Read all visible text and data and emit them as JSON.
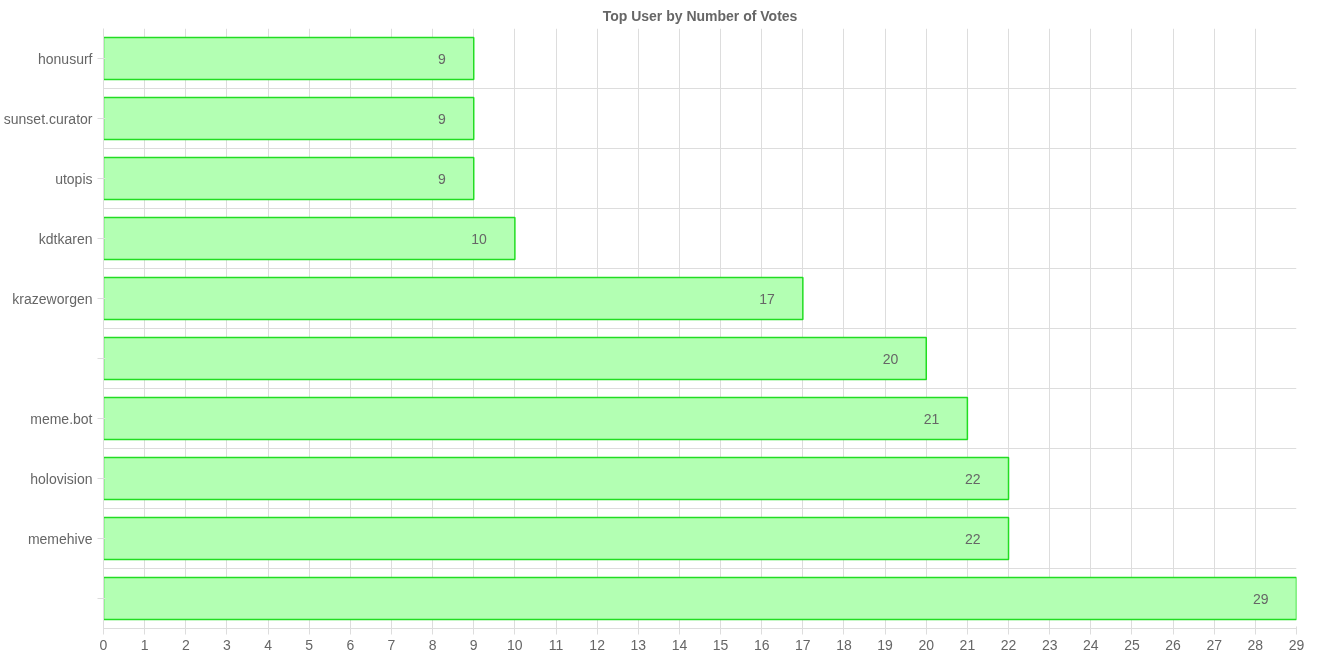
{
  "chart_data": {
    "type": "bar",
    "orientation": "horizontal",
    "title": "Top User by Number of Votes",
    "categories": [
      "honusurf",
      "sunset.curator",
      "utopis",
      "kdtkaren",
      "krazeworgen",
      null,
      "meme.bot",
      "holovision",
      "memehive",
      null
    ],
    "values": [
      9,
      9,
      9,
      10,
      17,
      20,
      21,
      22,
      22,
      29
    ],
    "color": "#b3ffb3",
    "xlim": [
      0,
      29
    ],
    "xticks": [
      0,
      1,
      2,
      3,
      4,
      5,
      6,
      7,
      8,
      9,
      10,
      11,
      12,
      13,
      14,
      15,
      16,
      17,
      18,
      19,
      20,
      21,
      22,
      23,
      24,
      25,
      26,
      27,
      28,
      29
    ],
    "grid": true,
    "data_labels": true
  }
}
